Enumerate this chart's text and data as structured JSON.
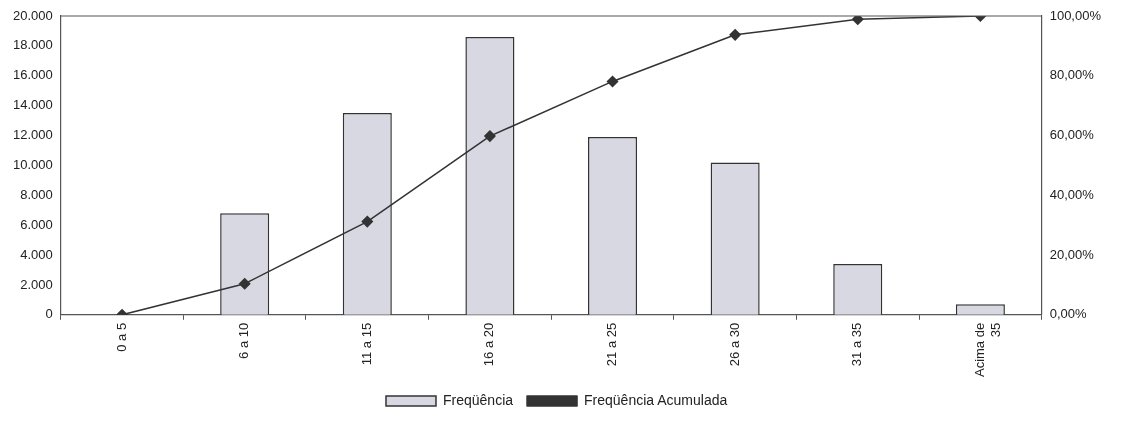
{
  "chart_data": {
    "type": "bar",
    "categories": [
      "0 a 5",
      "6 a 10",
      "11 a 15",
      "16 a 20",
      "21 a 25",
      "26 a 30",
      "31 a 35",
      "Acima de 35"
    ],
    "series": [
      {
        "name": "Freqüência",
        "color": "#d8d8e2",
        "values": [
          0,
          6800,
          13500,
          18600,
          11900,
          10200,
          3400,
          700
        ]
      },
      {
        "name": "Freqüência Acumulada",
        "type": "line",
        "axis": "y2",
        "color": "#333333",
        "marker": "diamond",
        "values": [
          0,
          10.4,
          31.2,
          59.8,
          78.1,
          93.7,
          98.9,
          100
        ]
      }
    ],
    "ylim": [
      0,
      20000
    ],
    "yticks": [
      {
        "value": 0,
        "label": "0"
      },
      {
        "value": 2000,
        "label": "2.000"
      },
      {
        "value": 4000,
        "label": "4.000"
      },
      {
        "value": 6000,
        "label": "6.000"
      },
      {
        "value": 8000,
        "label": "8.000"
      },
      {
        "value": 10000,
        "label": "10.000"
      },
      {
        "value": 12000,
        "label": "12.000"
      },
      {
        "value": 14000,
        "label": "14.000"
      },
      {
        "value": 16000,
        "label": "16.000"
      },
      {
        "value": 18000,
        "label": "18.000"
      },
      {
        "value": 20000,
        "label": "20.000"
      }
    ],
    "y2lim": [
      0,
      100
    ],
    "y2ticks": [
      {
        "value": 0,
        "label": "0,00%"
      },
      {
        "value": 20,
        "label": "20,00%"
      },
      {
        "value": 40,
        "label": "40,00%"
      },
      {
        "value": 60,
        "label": "60,00%"
      },
      {
        "value": 80,
        "label": "80,00%"
      },
      {
        "value": 100,
        "label": "100,00%"
      }
    ],
    "grid": false,
    "legend": "bottom"
  }
}
